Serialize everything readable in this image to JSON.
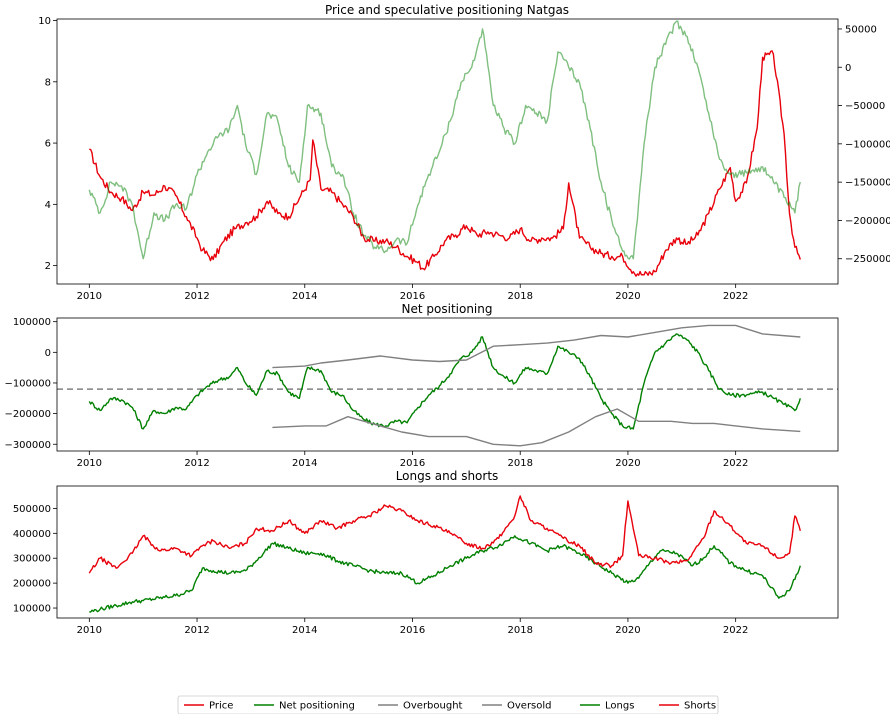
{
  "chart_data": [
    {
      "type": "line",
      "title": "Price and speculative positioning Natgas",
      "xlim": [
        2009.4,
        2023.9
      ],
      "x_ticks": [
        2010,
        2012,
        2014,
        2016,
        2018,
        2020,
        2022
      ],
      "y_left": {
        "lim": [
          1.4,
          10.05
        ],
        "ticks": [
          2,
          4,
          6,
          8,
          10
        ]
      },
      "y_right": {
        "lim": [
          -283000,
          63000
        ],
        "ticks": [
          50000,
          0,
          -50000,
          -100000,
          -150000,
          -200000,
          -250000
        ]
      },
      "series": [
        {
          "name": "Price",
          "axis": "left",
          "color": "#e8000b",
          "x": [
            2010.0,
            2010.2,
            2010.4,
            2010.6,
            2010.8,
            2011.0,
            2011.2,
            2011.4,
            2011.6,
            2011.8,
            2012.0,
            2012.1,
            2012.3,
            2012.5,
            2012.7,
            2012.9,
            2013.1,
            2013.3,
            2013.5,
            2013.7,
            2013.9,
            2014.1,
            2014.15,
            2014.3,
            2014.5,
            2014.7,
            2014.9,
            2015.1,
            2015.3,
            2015.5,
            2015.7,
            2015.9,
            2016.1,
            2016.2,
            2016.4,
            2016.6,
            2016.8,
            2017.0,
            2017.2,
            2017.4,
            2017.6,
            2017.8,
            2018.0,
            2018.2,
            2018.4,
            2018.6,
            2018.8,
            2018.9,
            2019.1,
            2019.3,
            2019.5,
            2019.7,
            2019.9,
            2020.1,
            2020.3,
            2020.5,
            2020.7,
            2020.9,
            2021.1,
            2021.3,
            2021.5,
            2021.7,
            2021.9,
            2022.0,
            2022.2,
            2022.4,
            2022.5,
            2022.7,
            2022.9,
            2023.0,
            2023.1,
            2023.2
          ],
          "values": [
            5.8,
            4.9,
            4.4,
            4.2,
            3.8,
            4.4,
            4.3,
            4.6,
            4.3,
            3.6,
            2.9,
            2.5,
            2.2,
            2.8,
            3.2,
            3.4,
            3.6,
            4.1,
            3.7,
            3.6,
            4.2,
            4.8,
            6.1,
            4.5,
            4.4,
            4.0,
            3.6,
            2.9,
            2.8,
            2.8,
            2.6,
            2.3,
            2.1,
            1.9,
            2.3,
            2.8,
            3.0,
            3.3,
            3.0,
            3.1,
            3.0,
            2.9,
            3.2,
            2.8,
            2.9,
            2.9,
            3.2,
            4.7,
            2.9,
            2.6,
            2.4,
            2.3,
            2.3,
            1.8,
            1.7,
            1.8,
            2.5,
            2.9,
            2.7,
            3.0,
            3.7,
            4.5,
            5.2,
            4.1,
            4.7,
            6.5,
            8.8,
            8.9,
            6.3,
            3.7,
            2.6,
            2.2
          ]
        },
        {
          "name": "Net positioning",
          "axis": "right",
          "color": "#008000",
          "opacity": 0.5,
          "x": [
            2010.0,
            2010.2,
            2010.4,
            2010.6,
            2010.8,
            2011.0,
            2011.2,
            2011.4,
            2011.6,
            2011.8,
            2012.0,
            2012.2,
            2012.4,
            2012.6,
            2012.75,
            2012.9,
            2013.1,
            2013.3,
            2013.5,
            2013.7,
            2013.9,
            2014.05,
            2014.3,
            2014.5,
            2014.7,
            2014.9,
            2015.1,
            2015.3,
            2015.5,
            2015.7,
            2015.9,
            2016.1,
            2016.3,
            2016.5,
            2016.7,
            2016.9,
            2017.1,
            2017.3,
            2017.5,
            2017.7,
            2017.9,
            2018.1,
            2018.3,
            2018.5,
            2018.7,
            2018.9,
            2019.1,
            2019.3,
            2019.5,
            2019.7,
            2019.9,
            2020.1,
            2020.3,
            2020.5,
            2020.7,
            2020.9,
            2021.1,
            2021.3,
            2021.5,
            2021.7,
            2021.9,
            2022.1,
            2022.3,
            2022.5,
            2022.7,
            2022.9,
            2023.1,
            2023.2
          ],
          "values": [
            -160000,
            -190000,
            -150000,
            -155000,
            -180000,
            -250000,
            -190000,
            -200000,
            -180000,
            -185000,
            -140000,
            -110000,
            -90000,
            -80000,
            -50000,
            -100000,
            -140000,
            -60000,
            -70000,
            -130000,
            -150000,
            -50000,
            -60000,
            -130000,
            -140000,
            -190000,
            -220000,
            -235000,
            -240000,
            -225000,
            -230000,
            -180000,
            -140000,
            -110000,
            -70000,
            -20000,
            0,
            50000,
            -50000,
            -80000,
            -100000,
            -50000,
            -60000,
            -70000,
            20000,
            0,
            -20000,
            -80000,
            -150000,
            -200000,
            -240000,
            -250000,
            -100000,
            0,
            30000,
            60000,
            40000,
            0,
            -60000,
            -120000,
            -140000,
            -140000,
            -135000,
            -130000,
            -150000,
            -170000,
            -190000,
            -150000
          ]
        }
      ]
    },
    {
      "type": "line",
      "title": "Net positioning",
      "xlim": [
        2009.4,
        2023.9
      ],
      "x_ticks": [
        2010,
        2012,
        2014,
        2016,
        2018,
        2020,
        2022
      ],
      "y_left": {
        "lim": [
          -322000,
          112000
        ],
        "ticks": [
          100000,
          0,
          -100000,
          -200000,
          -300000
        ]
      },
      "hline": {
        "value": -120000,
        "color": "#808080",
        "style": "dashed"
      },
      "series": [
        {
          "name": "Net positioning",
          "axis": "left",
          "color": "#008000",
          "x": [
            2010.0,
            2010.2,
            2010.4,
            2010.6,
            2010.8,
            2011.0,
            2011.2,
            2011.4,
            2011.6,
            2011.8,
            2012.0,
            2012.2,
            2012.4,
            2012.6,
            2012.75,
            2012.9,
            2013.1,
            2013.3,
            2013.5,
            2013.7,
            2013.9,
            2014.05,
            2014.3,
            2014.5,
            2014.7,
            2014.9,
            2015.1,
            2015.3,
            2015.5,
            2015.7,
            2015.9,
            2016.1,
            2016.3,
            2016.5,
            2016.7,
            2016.9,
            2017.1,
            2017.3,
            2017.5,
            2017.7,
            2017.9,
            2018.1,
            2018.3,
            2018.5,
            2018.7,
            2018.9,
            2019.1,
            2019.3,
            2019.5,
            2019.7,
            2019.9,
            2020.1,
            2020.3,
            2020.5,
            2020.7,
            2020.9,
            2021.1,
            2021.3,
            2021.5,
            2021.7,
            2021.9,
            2022.1,
            2022.3,
            2022.5,
            2022.7,
            2022.9,
            2023.1,
            2023.2
          ],
          "values": [
            -160000,
            -190000,
            -150000,
            -155000,
            -180000,
            -250000,
            -190000,
            -200000,
            -180000,
            -185000,
            -140000,
            -110000,
            -90000,
            -80000,
            -50000,
            -100000,
            -140000,
            -60000,
            -70000,
            -130000,
            -150000,
            -50000,
            -60000,
            -130000,
            -140000,
            -190000,
            -220000,
            -235000,
            -240000,
            -225000,
            -230000,
            -180000,
            -140000,
            -110000,
            -70000,
            -20000,
            0,
            50000,
            -50000,
            -80000,
            -100000,
            -50000,
            -60000,
            -70000,
            20000,
            0,
            -20000,
            -80000,
            -150000,
            -200000,
            -240000,
            -250000,
            -100000,
            0,
            30000,
            60000,
            40000,
            0,
            -60000,
            -120000,
            -140000,
            -140000,
            -135000,
            -130000,
            -150000,
            -170000,
            -190000,
            -150000
          ]
        },
        {
          "name": "Overbought",
          "axis": "left",
          "color": "#808080",
          "x": [
            2013.4,
            2014.0,
            2014.3,
            2014.8,
            2015.4,
            2016.0,
            2016.5,
            2017.0,
            2017.5,
            2018.0,
            2018.5,
            2019.0,
            2019.5,
            2020.0,
            2020.5,
            2021.0,
            2021.5,
            2022.0,
            2022.5,
            2023.2
          ],
          "values": [
            -50000,
            -45000,
            -35000,
            -25000,
            -12000,
            -25000,
            -30000,
            -25000,
            20000,
            25000,
            30000,
            40000,
            55000,
            50000,
            65000,
            80000,
            88000,
            88000,
            60000,
            50000
          ]
        },
        {
          "name": "Oversold",
          "axis": "left",
          "color": "#808080",
          "x": [
            2013.4,
            2014.0,
            2014.4,
            2014.8,
            2015.2,
            2015.8,
            2016.3,
            2017.0,
            2017.5,
            2018.0,
            2018.4,
            2018.9,
            2019.4,
            2019.8,
            2020.2,
            2020.8,
            2021.2,
            2021.6,
            2022.0,
            2022.5,
            2023.2
          ],
          "values": [
            -245000,
            -240000,
            -240000,
            -210000,
            -230000,
            -260000,
            -275000,
            -275000,
            -300000,
            -305000,
            -295000,
            -260000,
            -210000,
            -185000,
            -225000,
            -225000,
            -232000,
            -232000,
            -240000,
            -250000,
            -258000
          ]
        }
      ]
    },
    {
      "type": "line",
      "title": "Longs and shorts",
      "xlim": [
        2009.4,
        2023.9
      ],
      "x_ticks": [
        2010,
        2012,
        2014,
        2016,
        2018,
        2020,
        2022
      ],
      "y_left": {
        "lim": [
          60000,
          590000
        ],
        "ticks": [
          100000,
          200000,
          300000,
          400000,
          500000
        ]
      },
      "series": [
        {
          "name": "Longs",
          "axis": "left",
          "color": "#008000",
          "x": [
            2010.0,
            2010.2,
            2010.5,
            2010.8,
            2011.0,
            2011.3,
            2011.6,
            2011.9,
            2012.1,
            2012.3,
            2012.6,
            2012.9,
            2013.1,
            2013.4,
            2013.7,
            2014.0,
            2014.3,
            2014.6,
            2014.9,
            2015.2,
            2015.5,
            2015.8,
            2016.1,
            2016.4,
            2016.7,
            2017.0,
            2017.3,
            2017.6,
            2017.9,
            2018.2,
            2018.5,
            2018.8,
            2019.1,
            2019.4,
            2019.7,
            2020.0,
            2020.2,
            2020.4,
            2020.6,
            2020.9,
            2021.2,
            2021.4,
            2021.6,
            2021.9,
            2022.2,
            2022.5,
            2022.8,
            2023.0,
            2023.2
          ],
          "values": [
            85000,
            95000,
            110000,
            125000,
            130000,
            140000,
            150000,
            170000,
            260000,
            250000,
            240000,
            250000,
            290000,
            360000,
            340000,
            320000,
            320000,
            290000,
            270000,
            250000,
            240000,
            240000,
            200000,
            230000,
            270000,
            300000,
            330000,
            350000,
            390000,
            360000,
            330000,
            350000,
            320000,
            280000,
            240000,
            200000,
            220000,
            280000,
            330000,
            320000,
            270000,
            300000,
            350000,
            280000,
            250000,
            230000,
            140000,
            170000,
            270000
          ]
        },
        {
          "name": "Shorts",
          "axis": "left",
          "color": "#e8000b",
          "x": [
            2010.0,
            2010.2,
            2010.5,
            2010.8,
            2011.0,
            2011.3,
            2011.6,
            2011.9,
            2012.1,
            2012.3,
            2012.6,
            2012.9,
            2013.1,
            2013.4,
            2013.7,
            2014.0,
            2014.3,
            2014.6,
            2014.9,
            2015.2,
            2015.5,
            2015.8,
            2016.1,
            2016.4,
            2016.7,
            2017.0,
            2017.3,
            2017.6,
            2017.9,
            2018.0,
            2018.2,
            2018.5,
            2018.8,
            2019.1,
            2019.4,
            2019.7,
            2019.9,
            2020.0,
            2020.2,
            2020.5,
            2020.8,
            2021.1,
            2021.4,
            2021.6,
            2021.9,
            2022.2,
            2022.5,
            2022.8,
            2023.0,
            2023.1,
            2023.2
          ],
          "values": [
            240000,
            300000,
            260000,
            320000,
            390000,
            330000,
            340000,
            310000,
            350000,
            370000,
            340000,
            360000,
            420000,
            410000,
            450000,
            400000,
            450000,
            420000,
            450000,
            470000,
            510000,
            490000,
            450000,
            430000,
            400000,
            360000,
            340000,
            380000,
            470000,
            550000,
            450000,
            420000,
            380000,
            350000,
            280000,
            270000,
            310000,
            530000,
            310000,
            300000,
            280000,
            290000,
            380000,
            490000,
            430000,
            360000,
            350000,
            300000,
            320000,
            470000,
            410000
          ]
        }
      ]
    }
  ],
  "legend": {
    "items": [
      {
        "label": "Price",
        "color": "#e8000b"
      },
      {
        "label": "Net positioning",
        "color": "#008000"
      },
      {
        "label": "Overbought",
        "color": "#808080"
      },
      {
        "label": "Oversold",
        "color": "#808080"
      },
      {
        "label": "Longs",
        "color": "#008000"
      },
      {
        "label": "Shorts",
        "color": "#e8000b"
      }
    ]
  }
}
